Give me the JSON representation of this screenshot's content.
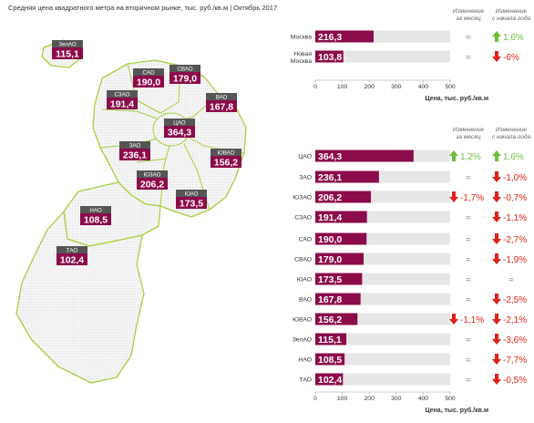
{
  "title": "Средняя цена квадратного метра на вторичном рынке, тыс. руб./кв.м | Октябрь 2017",
  "map": {
    "districts": [
      {
        "name": "ЗелАО",
        "value": "115,1"
      },
      {
        "name": "САО",
        "value": "190,0"
      },
      {
        "name": "СВАО",
        "value": "179,0"
      },
      {
        "name": "СЗАО",
        "value": "191,4"
      },
      {
        "name": "ВАО",
        "value": "167,8"
      },
      {
        "name": "ЦАО",
        "value": "364,3"
      },
      {
        "name": "ЗАО",
        "value": "236,1"
      },
      {
        "name": "ЮВАО",
        "value": "156,2"
      },
      {
        "name": "ЮЗАО",
        "value": "206,2"
      },
      {
        "name": "ЮАО",
        "value": "173,5"
      },
      {
        "name": "НАО",
        "value": "108,5"
      },
      {
        "name": "ТАО",
        "value": "102,4"
      }
    ]
  },
  "chart_data": [
    {
      "type": "bar",
      "orientation": "horizontal",
      "categories": [
        "Москва",
        "Новая Москва"
      ],
      "values": [
        216.3,
        103.8
      ],
      "value_labels": [
        "216,3",
        "103,8"
      ],
      "change_month_header": "Изменение за месяц",
      "change_year_header": "Изменение с начала года",
      "change_month": [
        {
          "text": "≈",
          "dir": "none"
        },
        {
          "text": "≈",
          "dir": "none"
        }
      ],
      "change_year": [
        {
          "text": "1,6%",
          "dir": "up"
        },
        {
          "text": "-6%",
          "dir": "down"
        }
      ],
      "xlim": [
        0,
        500
      ],
      "xticks": [
        "0",
        "100",
        "200",
        "300",
        "400",
        "500"
      ],
      "xlabel": "Цена, тыс. руб./кв.м"
    },
    {
      "type": "bar",
      "orientation": "horizontal",
      "categories": [
        "ЦАО",
        "ЗАО",
        "ЮЗАО",
        "СЗАО",
        "САО",
        "СВАО",
        "ЮАО",
        "ВАО",
        "ЮВАО",
        "ЗелАО",
        "НАО",
        "ТАО"
      ],
      "values": [
        364.3,
        236.1,
        206.2,
        191.4,
        190.0,
        179.0,
        173.5,
        167.8,
        156.2,
        115.1,
        108.5,
        102.4
      ],
      "value_labels": [
        "364,3",
        "236,1",
        "206,2",
        "191,4",
        "190,0",
        "179,0",
        "173,5",
        "167,8",
        "156,2",
        "115,1",
        "108,5",
        "102,4"
      ],
      "change_month_header": "Изменение за месяц",
      "change_year_header": "Изменение с начала года",
      "change_month": [
        {
          "text": "1,2%",
          "dir": "up"
        },
        {
          "text": "≈",
          "dir": "none"
        },
        {
          "text": "-1,7%",
          "dir": "down"
        },
        {
          "text": "≈",
          "dir": "none"
        },
        {
          "text": "≈",
          "dir": "none"
        },
        {
          "text": "≈",
          "dir": "none"
        },
        {
          "text": "≈",
          "dir": "none"
        },
        {
          "text": "≈",
          "dir": "none"
        },
        {
          "text": "-1,1%",
          "dir": "down"
        },
        {
          "text": "≈",
          "dir": "none"
        },
        {
          "text": "≈",
          "dir": "none"
        },
        {
          "text": "≈",
          "dir": "none"
        }
      ],
      "change_year": [
        {
          "text": "1,6%",
          "dir": "up"
        },
        {
          "text": "-1,0%",
          "dir": "down"
        },
        {
          "text": "-0,7%",
          "dir": "down"
        },
        {
          "text": "-1,1%",
          "dir": "down"
        },
        {
          "text": "-2,7%",
          "dir": "down"
        },
        {
          "text": "-1,9%",
          "dir": "down"
        },
        {
          "text": "≈",
          "dir": "none"
        },
        {
          "text": "-2,5%",
          "dir": "down"
        },
        {
          "text": "-2,1%",
          "dir": "down"
        },
        {
          "text": "-3,6%",
          "dir": "down"
        },
        {
          "text": "-7,7%",
          "dir": "down"
        },
        {
          "text": "-0,5%",
          "dir": "down"
        }
      ],
      "xlim": [
        0,
        500
      ],
      "xticks": [
        "0",
        "100",
        "200",
        "300",
        "400",
        "500"
      ],
      "xlabel": "Цена, тыс. руб./кв.м"
    }
  ],
  "colors": {
    "bar": "#8c0b4a",
    "track": "#e6e6e6",
    "up": "#6cbf3c",
    "down": "#e0211b",
    "map_outline": "#a6cf3f",
    "map_fill": "#f1f1f1",
    "label_head": "#555555"
  }
}
